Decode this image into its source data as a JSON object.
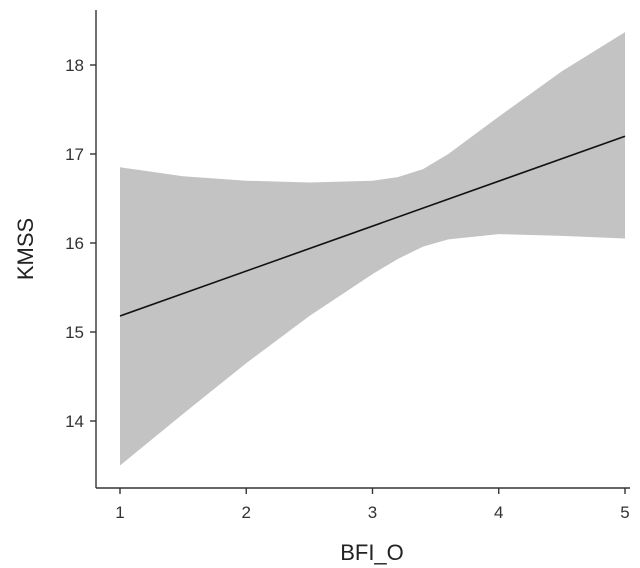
{
  "chart_data": {
    "type": "line",
    "title": "",
    "xlabel": "BFI_O",
    "ylabel": "KMSS",
    "xlim": [
      0.8,
      5.0
    ],
    "ylim": [
      12.8,
      18.6
    ],
    "x_ticks": [
      "1",
      "2",
      "3",
      "4",
      "5"
    ],
    "y_ticks": [
      "14",
      "15",
      "16",
      "17",
      "18"
    ],
    "grid": false,
    "legend": "none",
    "colors": {
      "line": "#111111",
      "band": "#c3c3c3",
      "axis": "#333333"
    },
    "series": [
      {
        "x": [
          1.0,
          5.0
        ],
        "y": [
          15.18,
          17.2
        ]
      }
    ],
    "confidence_band": {
      "x": [
        1.0,
        1.5,
        2.0,
        2.5,
        3.0,
        3.2,
        3.4,
        3.6,
        4.0,
        4.5,
        5.0
      ],
      "lower": [
        13.5,
        14.08,
        14.65,
        15.18,
        15.65,
        15.82,
        15.96,
        16.04,
        16.1,
        16.08,
        16.05
      ],
      "upper": [
        16.85,
        16.75,
        16.7,
        16.68,
        16.7,
        16.74,
        16.83,
        17.0,
        17.42,
        17.93,
        18.37
      ]
    }
  }
}
